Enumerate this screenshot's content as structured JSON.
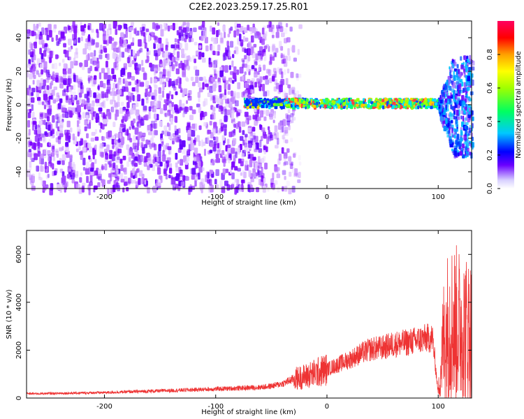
{
  "title": "C2E2.2023.259.17.25.R01",
  "chart_data": [
    {
      "type": "heatmap",
      "xlabel": "Height of straight line (km)",
      "ylabel": "Frequency (Hz)",
      "xlim": [
        -270,
        130
      ],
      "ylim": [
        -50,
        50
      ],
      "xticks": [
        -200,
        -100,
        0,
        100
      ],
      "yticks": [
        -40,
        -20,
        0,
        20,
        40
      ],
      "colorbar": {
        "label": "Normalized spectral amplitude",
        "range": [
          0.0,
          1.0
        ],
        "ticks": [
          0.0,
          0.2,
          0.4,
          0.6,
          0.8
        ],
        "colormap": [
          "#e0e0ff",
          "#6a00ff",
          "#0000ff",
          "#00c8ff",
          "#00ff60",
          "#c0ff00",
          "#ffa000",
          "#ff0000",
          "#ff0060"
        ]
      },
      "regions": [
        {
          "x_range": [
            -270,
            -30
          ],
          "freq_range": [
            -50,
            50
          ],
          "amplitude": "low noise (~0.1-0.2)"
        },
        {
          "x_range": [
            -75,
            100
          ],
          "freq_center": 1,
          "amplitude": "strong signal (~0.6-0.9)"
        },
        {
          "x_range": [
            100,
            130
          ],
          "freq_range": [
            -30,
            30
          ],
          "amplitude": "scattered (~0.2-0.4)"
        }
      ]
    },
    {
      "type": "line",
      "xlabel": "Height of straight line (km)",
      "ylabel": "SNR (10 * v/v)",
      "xlim": [
        -270,
        130
      ],
      "ylim": [
        0,
        7000
      ],
      "xticks": [
        -200,
        -100,
        0,
        100
      ],
      "yticks": [
        0,
        2000,
        4000,
        6000
      ],
      "color": "#ee3333",
      "series": [
        {
          "x": [
            -270,
            -250,
            -200,
            -150,
            -100,
            -75,
            -60,
            -50,
            -40,
            -30,
            -20,
            -10,
            0,
            10,
            20,
            30,
            40,
            50,
            60,
            70,
            80,
            90,
            95,
            100,
            105,
            110,
            120,
            130
          ],
          "y": [
            180,
            190,
            230,
            300,
            380,
            420,
            450,
            500,
            600,
            800,
            900,
            1050,
            1200,
            1400,
            1600,
            1850,
            2050,
            2100,
            2250,
            2300,
            2400,
            2500,
            2500,
            200,
            2500,
            3200,
            3000,
            2800
          ]
        }
      ]
    }
  ]
}
